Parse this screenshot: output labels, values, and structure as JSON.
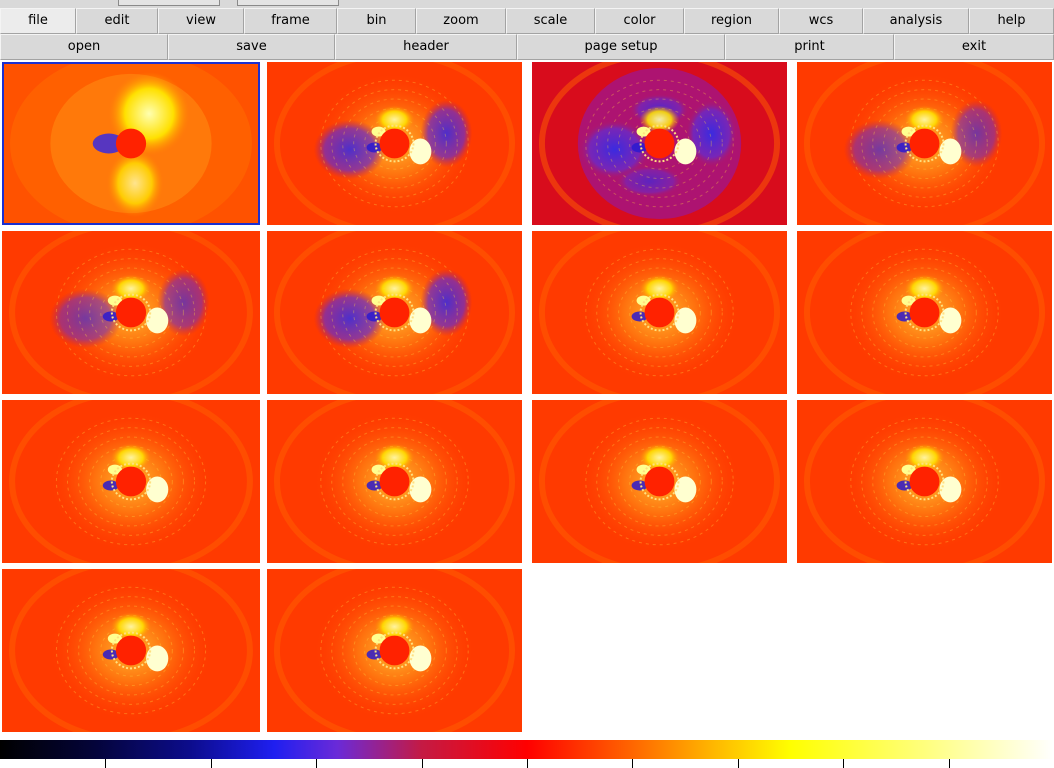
{
  "menu": [
    {
      "label": "file",
      "width": 76,
      "active": true
    },
    {
      "label": "edit",
      "width": 82
    },
    {
      "label": "view",
      "width": 86
    },
    {
      "label": "frame",
      "width": 93
    },
    {
      "label": "bin",
      "width": 79
    },
    {
      "label": "zoom",
      "width": 90
    },
    {
      "label": "scale",
      "width": 89
    },
    {
      "label": "color",
      "width": 89
    },
    {
      "label": "region",
      "width": 95
    },
    {
      "label": "wcs",
      "width": 84
    },
    {
      "label": "analysis",
      "width": 106
    },
    {
      "label": "help",
      "width": 85
    }
  ],
  "toolbar": [
    {
      "label": "open",
      "width": 168
    },
    {
      "label": "save",
      "width": 167
    },
    {
      "label": "header",
      "width": 182
    },
    {
      "label": "page setup",
      "width": 208
    },
    {
      "label": "print",
      "width": 169
    },
    {
      "label": "exit",
      "width": 160
    }
  ],
  "frames": [
    {
      "variant": "smooth",
      "current": true
    },
    {
      "variant": "blue-strong"
    },
    {
      "variant": "blue-full"
    },
    {
      "variant": "blue-light"
    },
    {
      "variant": "blue-light"
    },
    {
      "variant": "blue-strong"
    },
    {
      "variant": "plain"
    },
    {
      "variant": "plain"
    },
    {
      "variant": "plain"
    },
    {
      "variant": "plain"
    },
    {
      "variant": "plain"
    },
    {
      "variant": "plain"
    },
    {
      "variant": "plain"
    },
    {
      "variant": "plain"
    }
  ],
  "colorbar": {
    "colormap": [
      "#000000",
      "#0c0c8c",
      "#1f1ff0",
      "#c41a44",
      "#ff0000",
      "#ff6600",
      "#ffff00",
      "#ffffff"
    ],
    "tick_count": 10
  }
}
